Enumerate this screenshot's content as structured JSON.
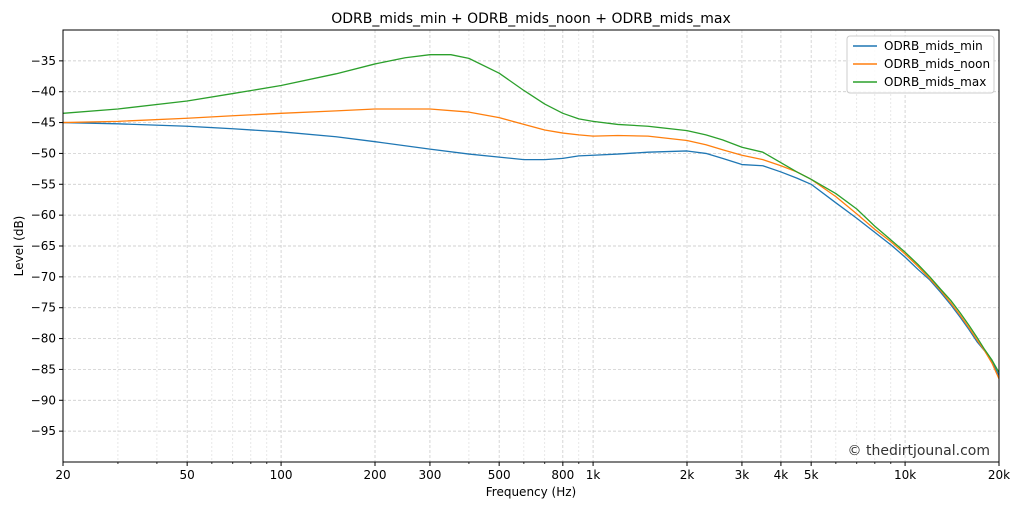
{
  "chart_data": {
    "type": "line",
    "title": "ODRB_mids_min + ODRB_mids_noon + ODRB_mids_max",
    "xlabel": "Frequency (Hz)",
    "ylabel": "Level (dB)",
    "xscale": "log",
    "xlim": [
      20,
      20000
    ],
    "ylim": [
      -100,
      -30
    ],
    "grid": true,
    "legend_position": "top-right",
    "watermark": "© thedirtjounal.com",
    "x_ticks": [
      {
        "value": 20,
        "label": "20"
      },
      {
        "value": 50,
        "label": "50"
      },
      {
        "value": 100,
        "label": "100"
      },
      {
        "value": 200,
        "label": "200"
      },
      {
        "value": 300,
        "label": "300"
      },
      {
        "value": 500,
        "label": "500"
      },
      {
        "value": 800,
        "label": "800"
      },
      {
        "value": 1000,
        "label": "1k"
      },
      {
        "value": 2000,
        "label": "2k"
      },
      {
        "value": 3000,
        "label": "3k"
      },
      {
        "value": 4000,
        "label": "4k"
      },
      {
        "value": 5000,
        "label": "5k"
      },
      {
        "value": 10000,
        "label": "10k"
      },
      {
        "value": 20000,
        "label": "20k"
      }
    ],
    "y_ticks": [
      {
        "value": -35,
        "label": "−35"
      },
      {
        "value": -40,
        "label": "−40"
      },
      {
        "value": -45,
        "label": "−45"
      },
      {
        "value": -50,
        "label": "−50"
      },
      {
        "value": -55,
        "label": "−55"
      },
      {
        "value": -60,
        "label": "−60"
      },
      {
        "value": -65,
        "label": "−65"
      },
      {
        "value": -70,
        "label": "−70"
      },
      {
        "value": -75,
        "label": "−75"
      },
      {
        "value": -80,
        "label": "−80"
      },
      {
        "value": -85,
        "label": "−85"
      },
      {
        "value": -90,
        "label": "−90"
      },
      {
        "value": -95,
        "label": "−95"
      }
    ],
    "series": [
      {
        "name": "ODRB_mids_min",
        "color": "#1f77b4",
        "x": [
          20,
          30,
          50,
          70,
          100,
          150,
          200,
          300,
          400,
          500,
          600,
          700,
          800,
          900,
          1000,
          1200,
          1500,
          2000,
          2300,
          2600,
          3000,
          3500,
          4000,
          4500,
          5000,
          6000,
          7000,
          8000,
          9000,
          10000,
          11000,
          12000,
          13000,
          14000,
          15000,
          16000,
          17000,
          18000,
          19000,
          20000
        ],
        "y": [
          -45,
          -45.2,
          -45.6,
          -46,
          -46.5,
          -47.3,
          -48.1,
          -49.3,
          -50.1,
          -50.6,
          -51,
          -51,
          -50.8,
          -50.4,
          -50.3,
          -50.1,
          -49.8,
          -49.6,
          -50,
          -50.8,
          -51.8,
          -52,
          -53,
          -54,
          -55,
          -58,
          -60.5,
          -62.8,
          -64.8,
          -66.8,
          -68.8,
          -70.5,
          -72.5,
          -74.5,
          -76.5,
          -78.5,
          -80.5,
          -82,
          -83.8,
          -86
        ]
      },
      {
        "name": "ODRB_mids_noon",
        "color": "#ff7f0e",
        "x": [
          20,
          30,
          50,
          70,
          100,
          150,
          200,
          300,
          400,
          500,
          600,
          700,
          800,
          900,
          1000,
          1200,
          1500,
          2000,
          2300,
          2600,
          3000,
          3500,
          4000,
          4500,
          5000,
          6000,
          7000,
          8000,
          9000,
          10000,
          11000,
          12000,
          13000,
          14000,
          15000,
          16000,
          17000,
          18000,
          19000,
          20000
        ],
        "y": [
          -45,
          -44.8,
          -44.3,
          -43.9,
          -43.5,
          -43.1,
          -42.8,
          -42.8,
          -43.3,
          -44.2,
          -45.3,
          -46.2,
          -46.7,
          -47,
          -47.2,
          -47.1,
          -47.2,
          -47.9,
          -48.6,
          -49.4,
          -50.3,
          -51,
          -52,
          -53,
          -54.2,
          -57,
          -59.8,
          -62.3,
          -64.3,
          -66.3,
          -68.3,
          -70.3,
          -72.2,
          -74.2,
          -76.2,
          -78.2,
          -80.2,
          -82,
          -84,
          -86.5
        ]
      },
      {
        "name": "ODRB_mids_max",
        "color": "#2ca02c",
        "x": [
          20,
          30,
          50,
          70,
          100,
          150,
          200,
          250,
          300,
          350,
          400,
          500,
          600,
          700,
          800,
          900,
          1000,
          1200,
          1500,
          2000,
          2300,
          2600,
          3000,
          3500,
          4000,
          4500,
          5000,
          6000,
          7000,
          8000,
          9000,
          10000,
          11000,
          12000,
          13000,
          14000,
          15000,
          16000,
          17000,
          18000,
          19000,
          20000
        ],
        "y": [
          -43.5,
          -42.8,
          -41.5,
          -40.3,
          -39,
          -37.1,
          -35.5,
          -34.5,
          -34,
          -34,
          -34.6,
          -37,
          -39.8,
          -42,
          -43.5,
          -44.4,
          -44.8,
          -45.3,
          -45.6,
          -46.3,
          -47,
          -47.8,
          -49,
          -49.8,
          -51.5,
          -53,
          -54.2,
          -56.5,
          -59,
          -61.8,
          -64,
          -66,
          -68,
          -70,
          -72,
          -73.8,
          -75.8,
          -77.8,
          -79.8,
          -81.8,
          -83.5,
          -85.5
        ]
      }
    ]
  }
}
